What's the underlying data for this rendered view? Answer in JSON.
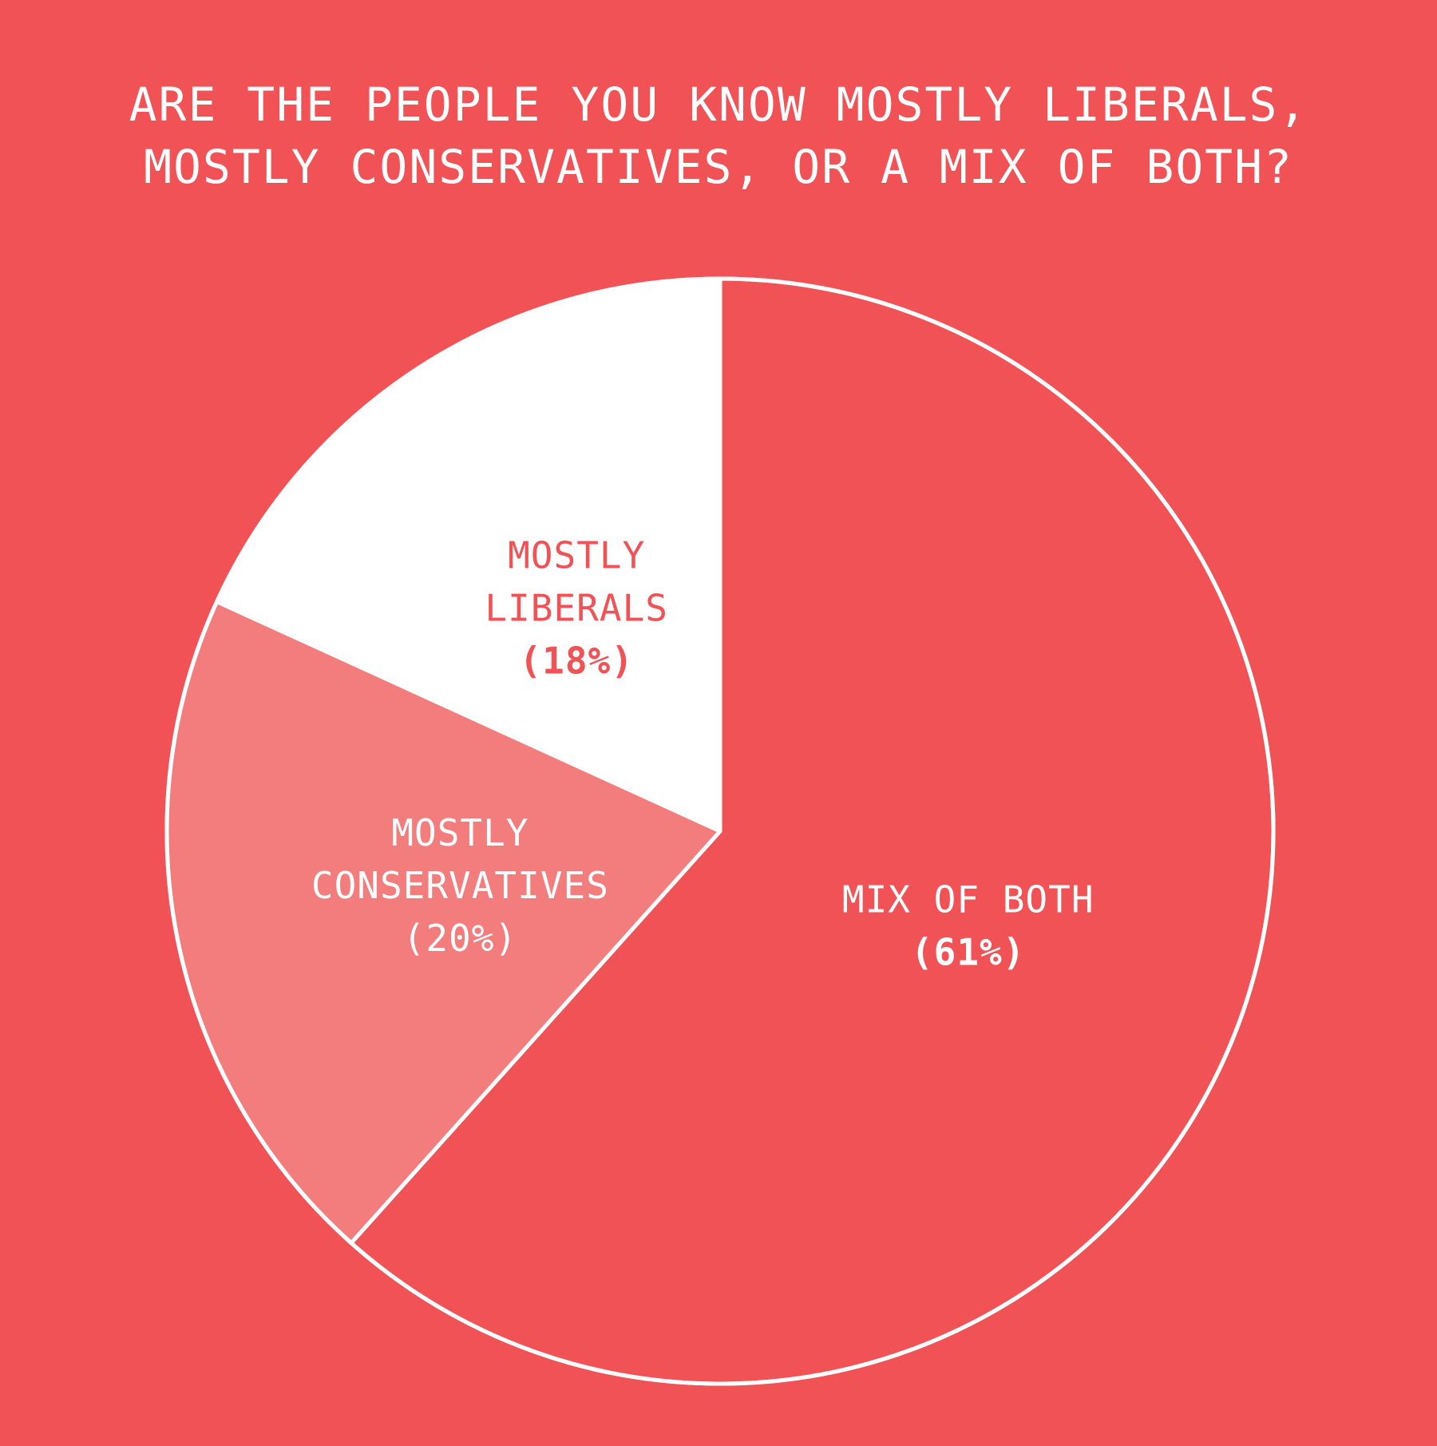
{
  "chart_data": {
    "type": "pie",
    "title": [
      "ARE THE PEOPLE YOU KNOW MOSTLY LIBERALS,",
      "MOSTLY CONSERVATIVES, OR A MIX OF BOTH?"
    ],
    "slices": [
      {
        "name": "MIX OF BOTH",
        "value": 61,
        "label_lines": [
          "MIX OF BOTH"
        ],
        "pct_label": "(61%)",
        "color": "#F05256",
        "text_color": "#FFFFFF",
        "pct_bold": true
      },
      {
        "name": "MOSTLY CONSERVATIVES",
        "value": 20,
        "label_lines": [
          "MOSTLY",
          "CONSERVATIVES"
        ],
        "pct_label": "(20%)",
        "color": "#F37D7D",
        "text_color": "#FFFFFF",
        "pct_bold": false
      },
      {
        "name": "MOSTLY LIBERALS",
        "value": 18,
        "label_lines": [
          "MOSTLY",
          "LIBERALS"
        ],
        "pct_label": "(18%)",
        "color": "#FFFFFF",
        "text_color": "#F05256",
        "pct_bold": true
      }
    ],
    "outline_color": "#FFFFFF",
    "background_color": "#F05256"
  }
}
